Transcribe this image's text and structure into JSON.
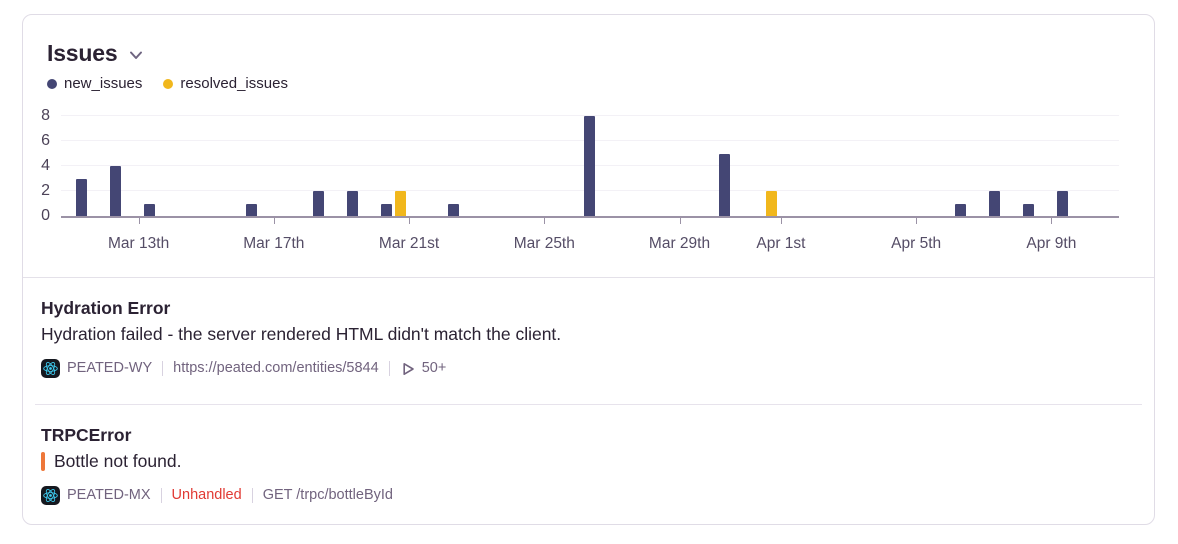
{
  "header": {
    "title": "Issues",
    "chevron_icon": "chevron-down-icon"
  },
  "legend": [
    {
      "label": "new_issues",
      "color": "#444674"
    },
    {
      "label": "resolved_issues",
      "color": "#f1b71c"
    }
  ],
  "chart_data": {
    "type": "bar",
    "title": "Issues",
    "categories": [
      "Mar 11",
      "Mar 12",
      "Mar 13",
      "Mar 14",
      "Mar 15",
      "Mar 16",
      "Mar 17",
      "Mar 18",
      "Mar 19",
      "Mar 20",
      "Mar 21",
      "Mar 22",
      "Mar 23",
      "Mar 24",
      "Mar 25",
      "Mar 26",
      "Mar 27",
      "Mar 28",
      "Mar 29",
      "Mar 30",
      "Mar 31",
      "Apr 1",
      "Apr 2",
      "Apr 3",
      "Apr 4",
      "Apr 5",
      "Apr 6",
      "Apr 7",
      "Apr 8",
      "Apr 9",
      "Apr 10"
    ],
    "series": [
      {
        "name": "new_issues",
        "color": "#444674",
        "values": [
          3,
          4,
          1,
          0,
          0,
          1,
          0,
          2,
          2,
          1,
          0,
          1,
          0,
          0,
          0,
          8,
          0,
          0,
          0,
          5,
          0,
          0,
          0,
          0,
          0,
          0,
          1,
          2,
          1,
          2,
          0
        ]
      },
      {
        "name": "resolved_issues",
        "color": "#f1b71c",
        "values": [
          0,
          0,
          0,
          0,
          0,
          0,
          0,
          0,
          0,
          2,
          0,
          0,
          0,
          0,
          0,
          0,
          0,
          0,
          0,
          0,
          2,
          0,
          0,
          0,
          0,
          0,
          0,
          0,
          0,
          0,
          0
        ]
      }
    ],
    "xticks": [
      {
        "label": "Mar 13th",
        "index": 2
      },
      {
        "label": "Mar 17th",
        "index": 6
      },
      {
        "label": "Mar 21st",
        "index": 10
      },
      {
        "label": "Mar 25th",
        "index": 14
      },
      {
        "label": "Mar 29th",
        "index": 18
      },
      {
        "label": "Apr 1st",
        "index": 21
      },
      {
        "label": "Apr 5th",
        "index": 25
      },
      {
        "label": "Apr 9th",
        "index": 29
      }
    ],
    "yticks": [
      0,
      2,
      4,
      6,
      8
    ],
    "ylim": [
      0,
      8.6
    ],
    "grid": true,
    "legend_position": "top-left"
  },
  "issues": [
    {
      "title": "Hydration Error",
      "message": "Hydration failed - the server rendered HTML didn't match the client.",
      "culprit_marker": false,
      "project_icon": "react-icon",
      "short_id": "PEATED-WY",
      "meta": [
        {
          "kind": "text",
          "text": "https://peated.com/entities/5844"
        },
        {
          "kind": "replay",
          "icon": "play-icon",
          "text": "50+"
        }
      ]
    },
    {
      "title": "TRPCError",
      "message": "Bottle not found.",
      "culprit_marker": true,
      "project_icon": "react-icon",
      "short_id": "PEATED-MX",
      "meta": [
        {
          "kind": "unhandled",
          "text": "Unhandled"
        },
        {
          "kind": "text",
          "text": "GET /trpc/bottleById"
        }
      ]
    }
  ],
  "colors": {
    "new_issues": "#444674",
    "resolved_issues": "#f1b71c",
    "unhandled": "#e13a34",
    "culprit_marker": "#ee7739",
    "axis": "#9b92a6",
    "react_logo": "#3fd0f5"
  }
}
